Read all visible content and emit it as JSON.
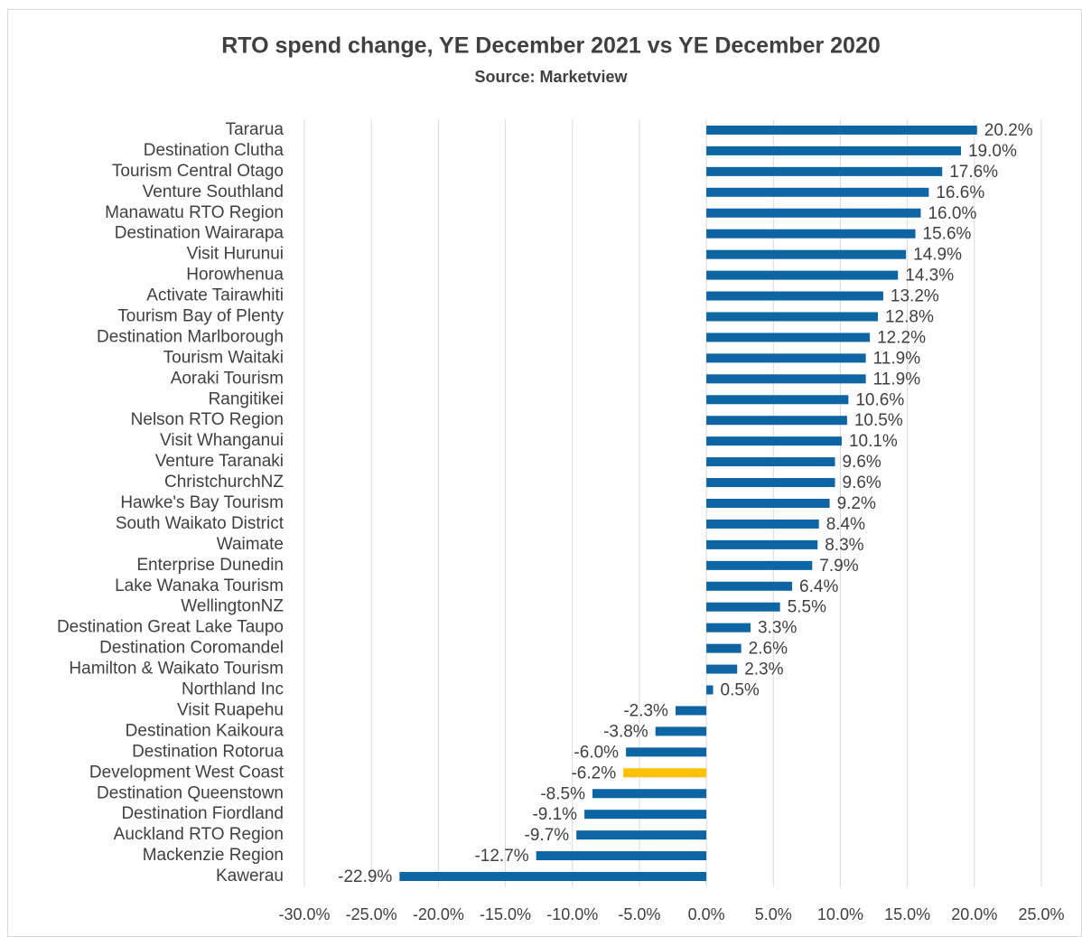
{
  "chart_data": {
    "type": "bar",
    "orientation": "horizontal",
    "title": "RTO spend change, YE December 2021 vs YE December 2020",
    "subtitle": "Source: Marketview",
    "categories": [
      "Tararua",
      "Destination Clutha",
      "Tourism Central Otago",
      "Venture Southland",
      "Manawatu RTO Region",
      "Destination Wairarapa",
      "Visit Hurunui",
      "Horowhenua",
      "Activate Tairawhiti",
      "Tourism Bay of Plenty",
      "Destination Marlborough",
      "Tourism Waitaki",
      "Aoraki Tourism",
      "Rangitikei",
      "Nelson RTO Region",
      "Visit Whanganui",
      "Venture Taranaki",
      "ChristchurchNZ",
      "Hawke's Bay Tourism",
      "South Waikato District",
      "Waimate",
      "Enterprise Dunedin",
      "Lake Wanaka Tourism",
      "WellingtonNZ",
      "Destination Great Lake Taupo",
      "Destination Coromandel",
      "Hamilton & Waikato Tourism",
      "Northland Inc",
      "Visit Ruapehu",
      "Destination Kaikoura",
      "Destination Rotorua",
      "Development West Coast",
      "Destination Queenstown",
      "Destination Fiordland",
      "Auckland RTO Region",
      "Mackenzie Region",
      "Kawerau"
    ],
    "values": [
      20.2,
      19.0,
      17.6,
      16.6,
      16.0,
      15.6,
      14.9,
      14.3,
      13.2,
      12.8,
      12.2,
      11.9,
      11.9,
      10.6,
      10.5,
      10.1,
      9.6,
      9.6,
      9.2,
      8.4,
      8.3,
      7.9,
      6.4,
      5.5,
      3.3,
      2.6,
      2.3,
      0.5,
      -2.3,
      -3.8,
      -6.0,
      -6.2,
      -8.5,
      -9.1,
      -9.7,
      -12.7,
      -22.9
    ],
    "value_labels": [
      "20.2%",
      "19.0%",
      "17.6%",
      "16.6%",
      "16.0%",
      "15.6%",
      "14.9%",
      "14.3%",
      "13.2%",
      "12.8%",
      "12.2%",
      "11.9%",
      "11.9%",
      "10.6%",
      "10.5%",
      "10.1%",
      "9.6%",
      "9.6%",
      "9.2%",
      "8.4%",
      "8.3%",
      "7.9%",
      "6.4%",
      "5.5%",
      "3.3%",
      "2.6%",
      "2.3%",
      "0.5%",
      "-2.3%",
      "-3.8%",
      "-6.0%",
      "-6.2%",
      "-8.5%",
      "-9.1%",
      "-9.7%",
      "-12.7%",
      "-22.9%"
    ],
    "colors": [
      "#0e65a3",
      "#0e65a3",
      "#0e65a3",
      "#0e65a3",
      "#0e65a3",
      "#0e65a3",
      "#0e65a3",
      "#0e65a3",
      "#0e65a3",
      "#0e65a3",
      "#0e65a3",
      "#0e65a3",
      "#0e65a3",
      "#0e65a3",
      "#0e65a3",
      "#0e65a3",
      "#0e65a3",
      "#0e65a3",
      "#0e65a3",
      "#0e65a3",
      "#0e65a3",
      "#0e65a3",
      "#0e65a3",
      "#0e65a3",
      "#0e65a3",
      "#0e65a3",
      "#0e65a3",
      "#0e65a3",
      "#0e65a3",
      "#0e65a3",
      "#0e65a3",
      "#ffc000",
      "#0e65a3",
      "#0e65a3",
      "#0e65a3",
      "#0e65a3",
      "#0e65a3"
    ],
    "xlim": [
      -30,
      25
    ],
    "xticks": [
      {
        "value": -30,
        "label": "-30.0%"
      },
      {
        "value": -25,
        "label": "-25.0%"
      },
      {
        "value": -20,
        "label": "-20.0%"
      },
      {
        "value": -15,
        "label": "-15.0%"
      },
      {
        "value": -10,
        "label": "-10.0%"
      },
      {
        "value": -5,
        "label": "-5.0%"
      },
      {
        "value": 0,
        "label": "0.0%"
      },
      {
        "value": 5,
        "label": "5.0%"
      },
      {
        "value": 10,
        "label": "10.0%"
      },
      {
        "value": 15,
        "label": "15.0%"
      },
      {
        "value": 20,
        "label": "20.0%"
      },
      {
        "value": 25,
        "label": "25.0%"
      }
    ],
    "grid": true
  }
}
